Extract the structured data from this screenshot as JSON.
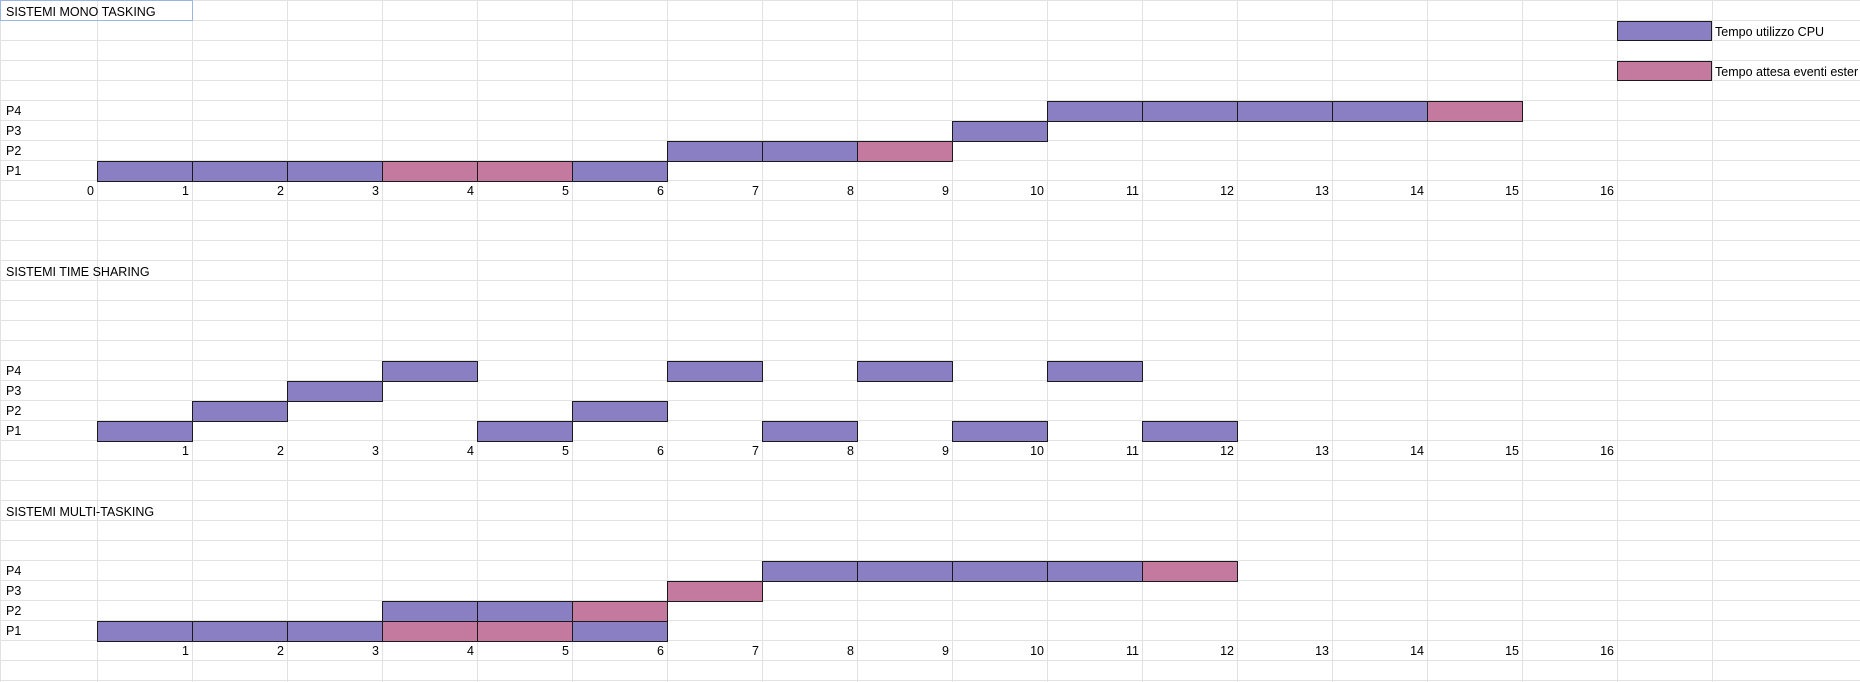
{
  "sheet": {
    "selected_cell_label": "SISTEMI MONO TASKING"
  },
  "colors": {
    "cpu": "#8b7fc4",
    "wait": "#c47a9e",
    "gridline": "#e2e2e2"
  },
  "legend": {
    "cpu_label": "Tempo utilizzo CPU",
    "wait_label": "Tempo attesa eventi ester"
  },
  "sections": [
    {
      "title": "SISTEMI MONO TASKING",
      "row_labels": [
        "P4",
        "P3",
        "P2",
        "P1"
      ],
      "axis_ticks": [
        "0",
        "1",
        "2",
        "3",
        "4",
        "5",
        "6",
        "7",
        "8",
        "9",
        "10",
        "11",
        "12",
        "13",
        "14",
        "15",
        "16"
      ],
      "bars": [
        {
          "process": "P1",
          "start": 0,
          "end": 1,
          "kind": "cpu"
        },
        {
          "process": "P1",
          "start": 1,
          "end": 2,
          "kind": "cpu"
        },
        {
          "process": "P1",
          "start": 2,
          "end": 3,
          "kind": "cpu"
        },
        {
          "process": "P1",
          "start": 3,
          "end": 4,
          "kind": "wait"
        },
        {
          "process": "P1",
          "start": 4,
          "end": 5,
          "kind": "wait"
        },
        {
          "process": "P1",
          "start": 5,
          "end": 6,
          "kind": "cpu"
        },
        {
          "process": "P2",
          "start": 6,
          "end": 7,
          "kind": "cpu"
        },
        {
          "process": "P2",
          "start": 7,
          "end": 8,
          "kind": "cpu"
        },
        {
          "process": "P2",
          "start": 8,
          "end": 9,
          "kind": "wait"
        },
        {
          "process": "P3",
          "start": 9,
          "end": 10,
          "kind": "cpu"
        },
        {
          "process": "P4",
          "start": 10,
          "end": 11,
          "kind": "cpu"
        },
        {
          "process": "P4",
          "start": 11,
          "end": 12,
          "kind": "cpu"
        },
        {
          "process": "P4",
          "start": 12,
          "end": 13,
          "kind": "cpu"
        },
        {
          "process": "P4",
          "start": 13,
          "end": 14,
          "kind": "cpu"
        },
        {
          "process": "P4",
          "start": 14,
          "end": 15,
          "kind": "wait"
        }
      ]
    },
    {
      "title": "SISTEMI TIME SHARING",
      "row_labels": [
        "P4",
        "P3",
        "P2",
        "P1"
      ],
      "axis_ticks": [
        "",
        "1",
        "2",
        "3",
        "4",
        "5",
        "6",
        "7",
        "8",
        "9",
        "10",
        "11",
        "12",
        "13",
        "14",
        "15",
        "16"
      ],
      "bars": [
        {
          "process": "P1",
          "start": 0,
          "end": 1,
          "kind": "cpu"
        },
        {
          "process": "P2",
          "start": 1,
          "end": 2,
          "kind": "cpu"
        },
        {
          "process": "P3",
          "start": 2,
          "end": 3,
          "kind": "cpu"
        },
        {
          "process": "P4",
          "start": 3,
          "end": 4,
          "kind": "cpu"
        },
        {
          "process": "P1",
          "start": 4,
          "end": 5,
          "kind": "cpu"
        },
        {
          "process": "P2",
          "start": 5,
          "end": 6,
          "kind": "cpu"
        },
        {
          "process": "P4",
          "start": 6,
          "end": 7,
          "kind": "cpu"
        },
        {
          "process": "P1",
          "start": 7,
          "end": 8,
          "kind": "cpu"
        },
        {
          "process": "P4",
          "start": 8,
          "end": 9,
          "kind": "cpu"
        },
        {
          "process": "P1",
          "start": 9,
          "end": 10,
          "kind": "cpu"
        },
        {
          "process": "P4",
          "start": 10,
          "end": 11,
          "kind": "cpu"
        },
        {
          "process": "P1",
          "start": 11,
          "end": 12,
          "kind": "cpu"
        }
      ]
    },
    {
      "title": "SISTEMI MULTI-TASKING",
      "row_labels": [
        "P4",
        "P3",
        "P2",
        "P1"
      ],
      "axis_ticks": [
        "",
        "1",
        "2",
        "3",
        "4",
        "5",
        "6",
        "7",
        "8",
        "9",
        "10",
        "11",
        "12",
        "13",
        "14",
        "15",
        "16"
      ],
      "bars": [
        {
          "process": "P1",
          "start": 0,
          "end": 1,
          "kind": "cpu"
        },
        {
          "process": "P1",
          "start": 1,
          "end": 2,
          "kind": "cpu"
        },
        {
          "process": "P1",
          "start": 2,
          "end": 3,
          "kind": "cpu"
        },
        {
          "process": "P1",
          "start": 3,
          "end": 4,
          "kind": "wait"
        },
        {
          "process": "P1",
          "start": 4,
          "end": 5,
          "kind": "wait"
        },
        {
          "process": "P1",
          "start": 5,
          "end": 6,
          "kind": "cpu"
        },
        {
          "process": "P2",
          "start": 3,
          "end": 4,
          "kind": "cpu"
        },
        {
          "process": "P2",
          "start": 4,
          "end": 5,
          "kind": "cpu"
        },
        {
          "process": "P2",
          "start": 5,
          "end": 6,
          "kind": "wait"
        },
        {
          "process": "P3",
          "start": 6,
          "end": 7,
          "kind": "wait"
        },
        {
          "process": "P4",
          "start": 7,
          "end": 8,
          "kind": "cpu"
        },
        {
          "process": "P4",
          "start": 8,
          "end": 9,
          "kind": "cpu"
        },
        {
          "process": "P4",
          "start": 9,
          "end": 10,
          "kind": "cpu"
        },
        {
          "process": "P4",
          "start": 10,
          "end": 11,
          "kind": "cpu"
        },
        {
          "process": "P4",
          "start": 11,
          "end": 12,
          "kind": "wait"
        }
      ]
    }
  ]
}
